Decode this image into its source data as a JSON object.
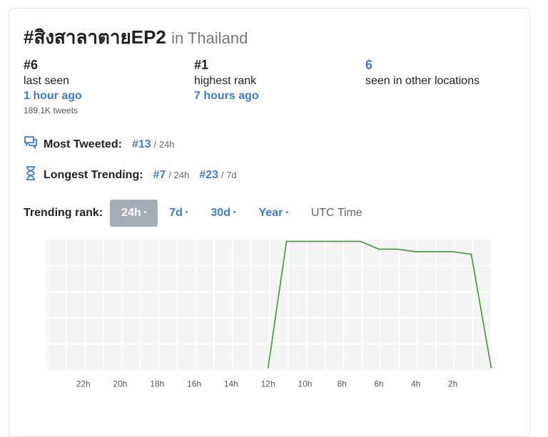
{
  "trend": {
    "title": "#สิงสาลาตายEP2",
    "location": "in Thailand"
  },
  "stats": [
    {
      "value": "#6",
      "label": "last seen",
      "time": "1 hour ago",
      "extra": "189.1K tweets"
    },
    {
      "value": "#1",
      "label": "highest rank",
      "time": "7 hours ago"
    },
    {
      "value": "6",
      "label": "seen in other locations"
    }
  ],
  "most_tweeted": {
    "label": "Most Tweeted:",
    "rank": "#13",
    "period": "/ 24h"
  },
  "longest_trending": {
    "label": "Longest Trending:",
    "rank1": "#7",
    "period1": "/ 24h",
    "rank2": "#23",
    "period2": "/ 7d"
  },
  "tabs": {
    "label": "Trending rank:",
    "items": [
      "24h",
      "7d",
      "30d",
      "Year"
    ],
    "active": "24h",
    "utc": "UTC Time"
  },
  "colors": {
    "accent": "#3b7dd8",
    "line": "#4a9a43",
    "active_tab": "#a3adb8"
  },
  "chart_data": {
    "type": "line",
    "x_ticks": [
      "22h",
      "20h",
      "18h",
      "16h",
      "14h",
      "12h",
      "10h",
      "8h",
      "6h",
      "4h",
      "2h"
    ],
    "y_note": "rank (lower is better), no axis printed",
    "points": [
      {
        "t": "12h",
        "rank": 50
      },
      {
        "t": "11h",
        "rank": 1
      },
      {
        "t": "7h",
        "rank": 1
      },
      {
        "t": "6h",
        "rank": 4
      },
      {
        "t": "5h",
        "rank": 4
      },
      {
        "t": "4h",
        "rank": 5
      },
      {
        "t": "2h",
        "rank": 5
      },
      {
        "t": "1h",
        "rank": 6
      },
      {
        "t": "now",
        "rank": 50
      }
    ],
    "grid": true
  }
}
